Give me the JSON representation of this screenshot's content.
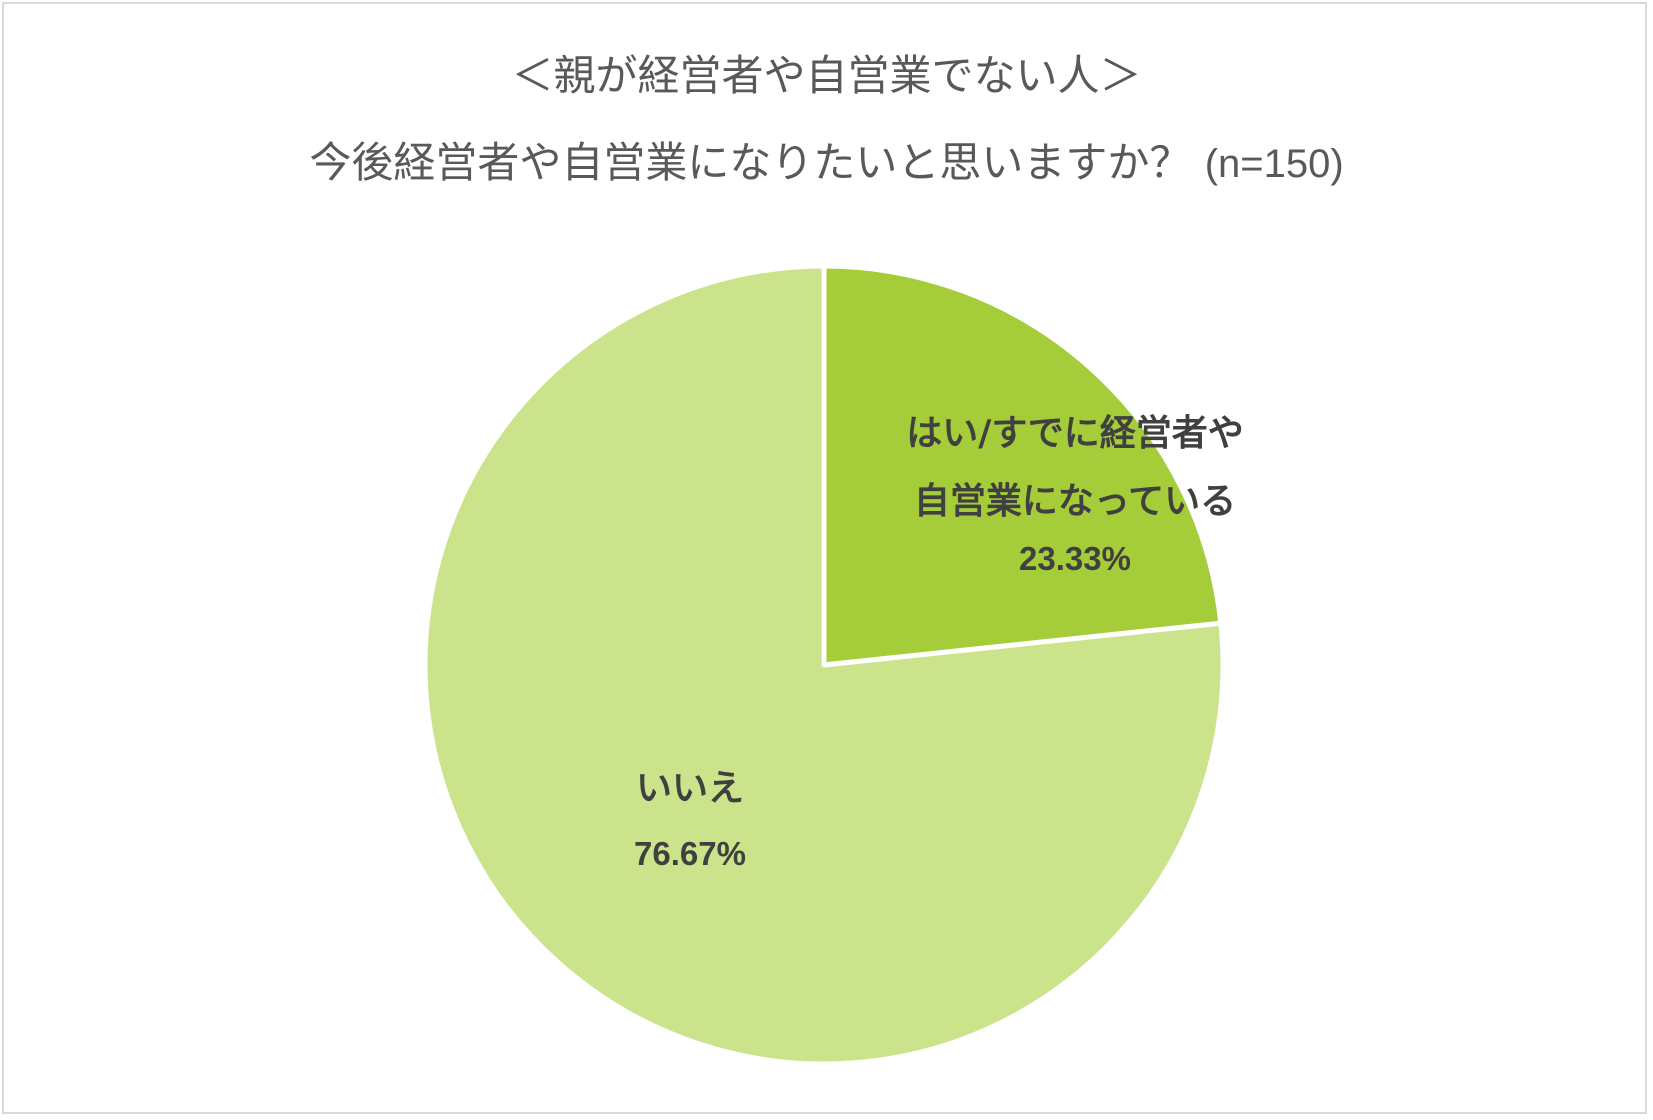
{
  "chart_data": {
    "type": "pie",
    "title": "＜親が経営者や自営業でない人＞",
    "subtitle": "今後経営者や自営業になりたいと思いますか？",
    "sample_size": "(n=150)",
    "slices": [
      {
        "label_lines": [
          "はい/すでに経営者や",
          "自営業になっている"
        ],
        "value": 23.33,
        "value_label": "23.33%",
        "color": "#a5cd39"
      },
      {
        "label_lines": [
          "いいえ"
        ],
        "value": 76.67,
        "value_label": "76.67%",
        "color": "#cbe38a"
      }
    ],
    "legend": "none",
    "slice_border_color": "#ffffff"
  }
}
